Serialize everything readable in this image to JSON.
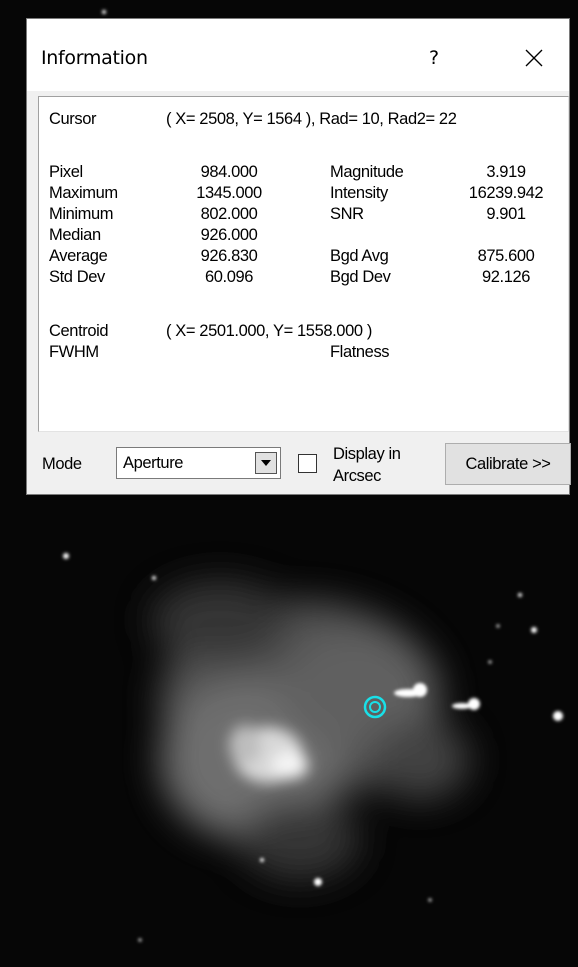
{
  "dialog": {
    "title": "Information",
    "help": "?",
    "cursor": {
      "label": "Cursor",
      "value": "( X= 2508, Y= 1564 ), Rad= 10, Rad2= 22"
    },
    "left": [
      {
        "label": "Pixel",
        "value": "984.000"
      },
      {
        "label": "Maximum",
        "value": "1345.000"
      },
      {
        "label": "Minimum",
        "value": "802.000"
      },
      {
        "label": "Median",
        "value": "926.000"
      },
      {
        "label": "Average",
        "value": "926.830"
      },
      {
        "label": "Std Dev",
        "value": "60.096"
      }
    ],
    "right": [
      {
        "label": "Magnitude",
        "value": "3.919"
      },
      {
        "label": "Intensity",
        "value": "16239.942"
      },
      {
        "label": "SNR",
        "value": "9.901"
      },
      {
        "label": "Bgd Avg",
        "value": "875.600"
      },
      {
        "label": "Bgd Dev",
        "value": "92.126"
      }
    ],
    "centroid": {
      "label": "Centroid",
      "value": "( X= 2501.000, Y= 1558.000 )"
    },
    "fwhm": {
      "label": "FWHM"
    },
    "flatness": {
      "label": "Flatness"
    },
    "mode_label": "Mode",
    "mode_value": "Aperture",
    "checkbox_label": [
      "Display in",
      "Arcsec"
    ],
    "button": "Calibrate >>"
  }
}
